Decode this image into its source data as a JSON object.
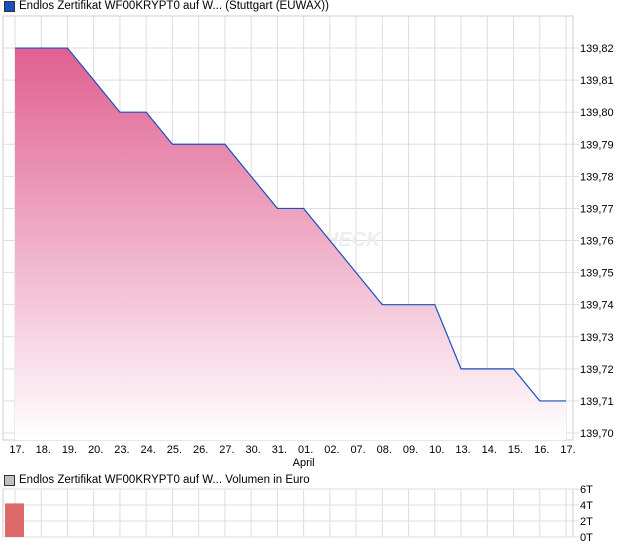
{
  "chart_data": [
    {
      "type": "area",
      "title": "Endlos Zertifikat WF00KRYPT0 auf W... (Stuttgart (EUWAX))",
      "legend_color": "#1a4fbf",
      "line_color": "#1a4fbf",
      "fill_top": "#e06090",
      "x": [
        "17.",
        "18.",
        "19.",
        "20.",
        "23.",
        "24.",
        "25.",
        "26.",
        "27.",
        "30.",
        "31.",
        "01.",
        "02.",
        "07.",
        "08.",
        "09.",
        "10.",
        "13.",
        "14.",
        "15.",
        "16.",
        "17."
      ],
      "x_sublabel": {
        "index": 11,
        "text": "April"
      },
      "values": [
        139.82,
        139.82,
        139.82,
        139.81,
        139.8,
        139.8,
        139.79,
        139.79,
        139.79,
        139.78,
        139.77,
        139.77,
        139.76,
        139.75,
        139.74,
        139.74,
        139.74,
        139.72,
        139.72,
        139.72,
        139.71,
        139.71
      ],
      "yticks": [
        "139,70",
        "139,71",
        "139,72",
        "139,73",
        "139,74",
        "139,75",
        "139,76",
        "139,77",
        "139,78",
        "139,79",
        "139,80",
        "139,81",
        "139,82"
      ],
      "ylim": [
        139.697,
        139.831
      ],
      "grid": true,
      "watermark": "CHECK"
    },
    {
      "type": "bar",
      "title": "Endlos Zertifikat WF00KRYPT0 auf W... Volumen in Euro",
      "legend_color": "#c0c0c0",
      "bar_color": "#dc6a6a",
      "values": [
        4.2,
        0,
        0,
        0,
        0,
        0,
        0,
        0,
        0,
        0,
        0,
        0,
        0,
        0,
        0,
        0,
        0,
        0,
        0,
        0,
        0,
        0
      ],
      "yticks": [
        "0T",
        "2T",
        "4T",
        "6T"
      ],
      "ylim": [
        0,
        6
      ]
    }
  ]
}
